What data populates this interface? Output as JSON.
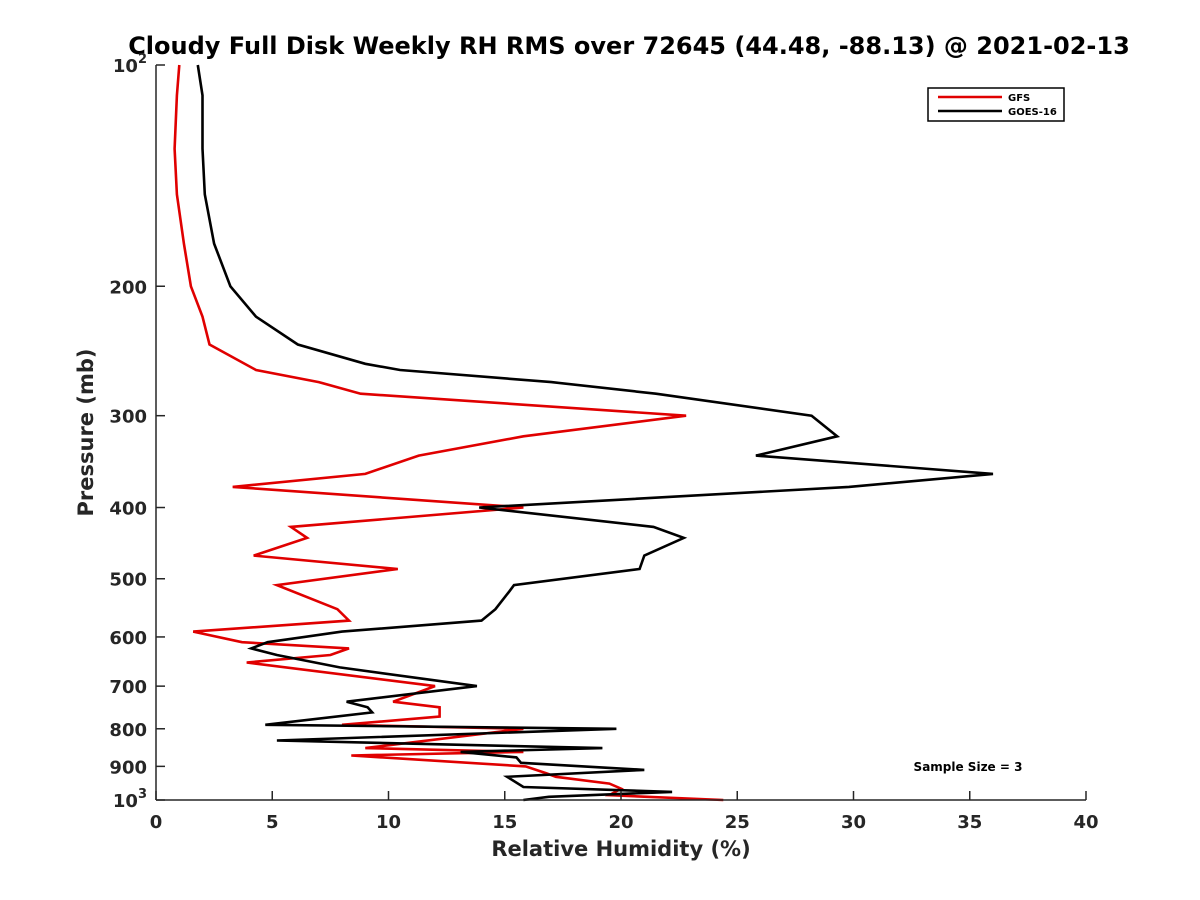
{
  "chart_data": {
    "type": "line",
    "title": "Cloudy Full Disk Weekly RH RMS over 72645 (44.48, -88.13) @ 2021-02-13",
    "xlabel": "Relative Humidity (%)",
    "ylabel": "Pressure (mb)",
    "xlim": [
      0,
      40
    ],
    "ylim": [
      100,
      1000
    ],
    "yscale": "log",
    "y_reversed": true,
    "grid": false,
    "legend_position": "top-right",
    "x_ticks": [
      "0",
      "5",
      "10",
      "15",
      "20",
      "25",
      "30",
      "35",
      "40"
    ],
    "y_ticks": [
      {
        "value": 100,
        "base": "10",
        "exp": "2"
      },
      {
        "value": 200,
        "label": "200"
      },
      {
        "value": 300,
        "label": "300"
      },
      {
        "value": 400,
        "label": "400"
      },
      {
        "value": 500,
        "label": "500"
      },
      {
        "value": 600,
        "label": "600"
      },
      {
        "value": 700,
        "label": "700"
      },
      {
        "value": 800,
        "label": "800"
      },
      {
        "value": 900,
        "label": "900"
      },
      {
        "value": 1000,
        "base": "10",
        "exp": "3"
      }
    ],
    "annotation": "Sample Size = 3",
    "series": [
      {
        "name": "GFS",
        "color": "#e00000",
        "points": [
          [
            1.0,
            100
          ],
          [
            0.9,
            110
          ],
          [
            0.8,
            130
          ],
          [
            0.9,
            150
          ],
          [
            1.2,
            175
          ],
          [
            1.5,
            200
          ],
          [
            2.0,
            220
          ],
          [
            2.3,
            240
          ],
          [
            4.3,
            260
          ],
          [
            7.0,
            270
          ],
          [
            8.8,
            280
          ],
          [
            22.8,
            300
          ],
          [
            15.8,
            320
          ],
          [
            11.3,
            340
          ],
          [
            9.0,
            360
          ],
          [
            3.3,
            375
          ],
          [
            15.8,
            400
          ],
          [
            5.8,
            425
          ],
          [
            6.5,
            440
          ],
          [
            4.2,
            465
          ],
          [
            10.4,
            485
          ],
          [
            5.2,
            510
          ],
          [
            7.8,
            550
          ],
          [
            8.3,
            570
          ],
          [
            1.6,
            590
          ],
          [
            3.7,
            610
          ],
          [
            8.3,
            622
          ],
          [
            7.5,
            635
          ],
          [
            3.9,
            650
          ],
          [
            12.0,
            700
          ],
          [
            10.2,
            735
          ],
          [
            12.2,
            748
          ],
          [
            12.2,
            770
          ],
          [
            8.0,
            790
          ],
          [
            15.8,
            800
          ],
          [
            9.0,
            850
          ],
          [
            15.8,
            860
          ],
          [
            8.4,
            870
          ],
          [
            15.9,
            900
          ],
          [
            16.8,
            920
          ],
          [
            17.2,
            930
          ],
          [
            19.5,
            950
          ],
          [
            20.0,
            965
          ],
          [
            19.5,
            985
          ],
          [
            24.4,
            1000
          ]
        ]
      },
      {
        "name": "GOES-16",
        "color": "#000000",
        "points": [
          [
            1.8,
            100
          ],
          [
            2.0,
            110
          ],
          [
            2.0,
            130
          ],
          [
            2.1,
            150
          ],
          [
            2.5,
            175
          ],
          [
            3.2,
            200
          ],
          [
            4.3,
            220
          ],
          [
            6.1,
            240
          ],
          [
            9.0,
            255
          ],
          [
            10.5,
            260
          ],
          [
            17.0,
            270
          ],
          [
            21.5,
            280
          ],
          [
            28.2,
            300
          ],
          [
            29.3,
            320
          ],
          [
            25.8,
            340
          ],
          [
            36.0,
            360
          ],
          [
            29.8,
            375
          ],
          [
            13.9,
            400
          ],
          [
            21.4,
            425
          ],
          [
            22.7,
            440
          ],
          [
            21.0,
            465
          ],
          [
            20.8,
            485
          ],
          [
            15.4,
            510
          ],
          [
            15.2,
            520
          ],
          [
            14.6,
            550
          ],
          [
            14.0,
            570
          ],
          [
            8.0,
            590
          ],
          [
            4.8,
            610
          ],
          [
            4.1,
            622
          ],
          [
            5.2,
            635
          ],
          [
            7.9,
            660
          ],
          [
            13.8,
            700
          ],
          [
            8.2,
            735
          ],
          [
            9.1,
            748
          ],
          [
            9.3,
            760
          ],
          [
            4.7,
            790
          ],
          [
            19.8,
            800
          ],
          [
            5.2,
            830
          ],
          [
            19.2,
            850
          ],
          [
            13.1,
            860
          ],
          [
            15.5,
            875
          ],
          [
            15.7,
            890
          ],
          [
            21.0,
            910
          ],
          [
            15.1,
            930
          ],
          [
            15.8,
            960
          ],
          [
            22.2,
            975
          ],
          [
            16.9,
            990
          ],
          [
            15.8,
            1000
          ]
        ]
      }
    ]
  }
}
